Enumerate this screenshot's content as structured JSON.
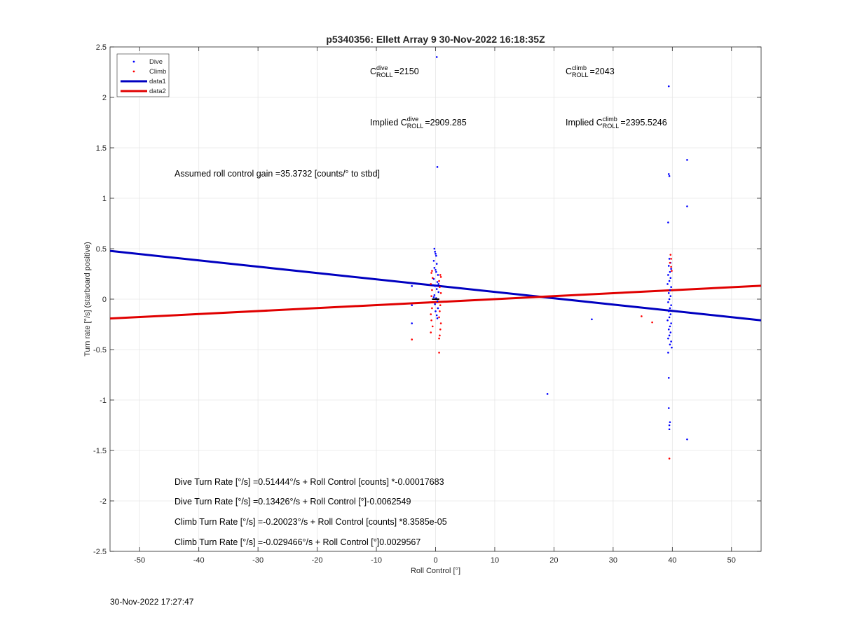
{
  "chart_data": {
    "type": "scatter",
    "title": "p5340356: Ellett Array 9 30-Nov-2022 16:18:35Z",
    "xlabel": "Roll Control [°]",
    "ylabel": "Turn rate [°/s] (starboard positive)",
    "xlim": [
      -55,
      55
    ],
    "ylim": [
      -2.5,
      2.5
    ],
    "xticks": [
      -50,
      -40,
      -30,
      -20,
      -10,
      0,
      10,
      20,
      30,
      40,
      50
    ],
    "yticks": [
      -2.5,
      -2,
      -1.5,
      -1,
      -0.5,
      0,
      0.5,
      1,
      1.5,
      2,
      2.5
    ],
    "xtick_labels": [
      "-50",
      "-40",
      "-30",
      "-20",
      "-10",
      "0",
      "10",
      "20",
      "30",
      "40",
      "50"
    ],
    "ytick_labels": [
      "-2.5",
      "-2",
      "-1.5",
      "-1",
      "-0.5",
      "0",
      "0.5",
      "1",
      "1.5",
      "2",
      "2.5"
    ],
    "grid": true,
    "legend_position": "top-left",
    "legend": [
      "Dive",
      "Climb",
      "data1",
      "data2"
    ],
    "series": [
      {
        "name": "Dive",
        "kind": "points",
        "color": "#0000ff",
        "points": [
          [
            0.2,
            2.4
          ],
          [
            0.3,
            1.31
          ],
          [
            -4,
            0.13
          ],
          [
            -4,
            -0.06
          ],
          [
            -4,
            -0.24
          ],
          [
            -0.2,
            0.5
          ],
          [
            -0.1,
            0.47
          ],
          [
            0,
            0.45
          ],
          [
            0.1,
            0.43
          ],
          [
            -0.3,
            0.38
          ],
          [
            0.2,
            0.35
          ],
          [
            -0.2,
            0.31
          ],
          [
            0.1,
            0.27
          ],
          [
            0.4,
            0.24
          ],
          [
            -0.3,
            0.2
          ],
          [
            0.3,
            0.17
          ],
          [
            -0.1,
            0.13
          ],
          [
            0.2,
            0.1
          ],
          [
            0.5,
            0.07
          ],
          [
            -0.2,
            0.04
          ],
          [
            0.1,
            0.01
          ],
          [
            0.3,
            -0.02
          ],
          [
            -0.1,
            -0.05
          ],
          [
            0.4,
            -0.09
          ],
          [
            0,
            -0.12
          ],
          [
            0.2,
            -0.16
          ],
          [
            -0.3,
            0.02
          ],
          [
            0.5,
            0.15
          ],
          [
            0.0,
            0.29
          ],
          [
            0.3,
            -0.19
          ],
          [
            18.9,
            -0.94
          ],
          [
            26.4,
            -0.2
          ],
          [
            39.4,
            2.11
          ],
          [
            39.4,
            1.24
          ],
          [
            39.5,
            1.22
          ],
          [
            39.3,
            0.76
          ],
          [
            39.5,
            0.4
          ],
          [
            39.7,
            0.36
          ],
          [
            39.4,
            0.33
          ],
          [
            39.8,
            0.3
          ],
          [
            39.6,
            0.27
          ],
          [
            39.3,
            0.24
          ],
          [
            39.7,
            0.21
          ],
          [
            39.5,
            0.18
          ],
          [
            39.2,
            0.15
          ],
          [
            39.8,
            0.12
          ],
          [
            39.6,
            0.09
          ],
          [
            39.4,
            0.06
          ],
          [
            39.7,
            0.03
          ],
          [
            39.5,
            0.0
          ],
          [
            39.3,
            -0.03
          ],
          [
            39.8,
            -0.06
          ],
          [
            39.6,
            -0.09
          ],
          [
            39.4,
            -0.12
          ],
          [
            39.7,
            -0.15
          ],
          [
            39.5,
            -0.18
          ],
          [
            39.2,
            -0.21
          ],
          [
            39.8,
            -0.24
          ],
          [
            39.6,
            -0.27
          ],
          [
            39.4,
            -0.3
          ],
          [
            39.7,
            -0.33
          ],
          [
            39.5,
            -0.36
          ],
          [
            39.3,
            -0.39
          ],
          [
            39.8,
            -0.42
          ],
          [
            39.6,
            -0.45
          ],
          [
            39.9,
            -0.48
          ],
          [
            39.3,
            -0.53
          ],
          [
            39.4,
            -0.78
          ],
          [
            39.4,
            -1.08
          ],
          [
            39.6,
            -1.22
          ],
          [
            39.5,
            -1.25
          ],
          [
            39.5,
            -1.29
          ],
          [
            42.5,
            1.38
          ],
          [
            42.5,
            0.92
          ],
          [
            42.5,
            -1.39
          ]
        ]
      },
      {
        "name": "Climb",
        "kind": "points",
        "color": "#ff0000",
        "points": [
          [
            -4,
            -0.4
          ],
          [
            0.6,
            -0.53
          ],
          [
            -0.7,
            0.26
          ],
          [
            0.8,
            0.24
          ],
          [
            -0.5,
            0.21
          ],
          [
            0.6,
            0.18
          ],
          [
            -0.8,
            0.15
          ],
          [
            0.7,
            0.12
          ],
          [
            -0.6,
            0.09
          ],
          [
            0.9,
            0.06
          ],
          [
            -0.7,
            0.03
          ],
          [
            0.5,
            0.0
          ],
          [
            -0.9,
            -0.03
          ],
          [
            0.8,
            -0.06
          ],
          [
            -0.6,
            -0.09
          ],
          [
            0.7,
            -0.12
          ],
          [
            -0.8,
            -0.15
          ],
          [
            0.6,
            -0.18
          ],
          [
            -0.7,
            -0.21
          ],
          [
            0.9,
            -0.24
          ],
          [
            -0.5,
            -0.27
          ],
          [
            0.8,
            -0.3
          ],
          [
            -0.8,
            -0.33
          ],
          [
            0.7,
            -0.36
          ],
          [
            0.6,
            -0.39
          ],
          [
            -0.6,
            0.28
          ],
          [
            0.9,
            0.22
          ],
          [
            34.8,
            -0.17
          ],
          [
            36.6,
            -0.23
          ],
          [
            39.7,
            0.44
          ],
          [
            39.8,
            0.4
          ],
          [
            39.6,
            0.36
          ],
          [
            39.8,
            0.32
          ],
          [
            39.9,
            0.28
          ],
          [
            39.5,
            -1.58
          ]
        ]
      },
      {
        "name": "data1",
        "kind": "line",
        "color": "#0000c0",
        "points": [
          [
            -55,
            0.478
          ],
          [
            55,
            -0.21
          ]
        ]
      },
      {
        "name": "data2",
        "kind": "line",
        "color": "#e00000",
        "points": [
          [
            -55,
            -0.192
          ],
          [
            55,
            0.133
          ]
        ]
      }
    ],
    "annotations": {
      "c_roll_dive": {
        "prefix": "C",
        "sup": "dive",
        "sub": "ROLL",
        "value": "=2150"
      },
      "c_roll_climb": {
        "prefix": "C",
        "sup": "climb",
        "sub": "ROLL",
        "value": "=2043"
      },
      "implied_dive": {
        "prefix": "Implied C",
        "sup": "dive",
        "sub": "ROLL",
        "value": "=2909.285"
      },
      "implied_climb": {
        "prefix": "Implied C",
        "sup": "climb",
        "sub": "ROLL",
        "value": "=2395.5246"
      },
      "gain": "Assumed roll control gain =35.3732 [counts/° to stbd]",
      "eq1": "Dive Turn Rate [°/s] =0.51444°/s + Roll Control [counts] *-0.00017683",
      "eq2": "Dive Turn Rate [°/s] =0.13426°/s + Roll Control [°]-0.0062549",
      "eq3": "Climb Turn Rate [°/s] =-0.20023°/s + Roll Control [counts] *8.3585e-05",
      "eq4": "Climb Turn Rate [°/s] =-0.029466°/s + Roll Control [°]0.0029567"
    }
  },
  "timestamp": "30-Nov-2022 17:27:47"
}
